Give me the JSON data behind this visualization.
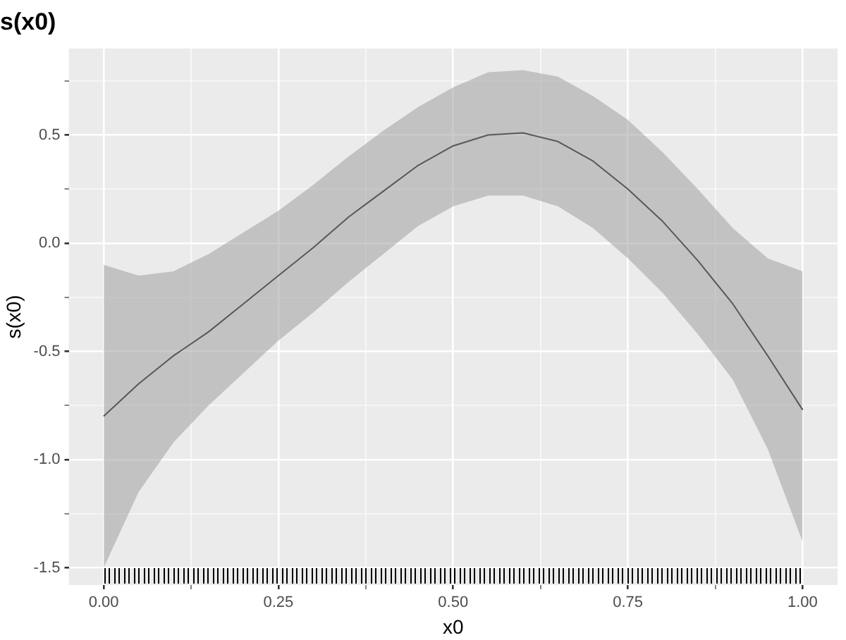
{
  "chart_data": {
    "type": "line",
    "title": "s(x0)",
    "xlabel": "x0",
    "ylabel": "s(x0)",
    "x": [
      0,
      0.05,
      0.1,
      0.15,
      0.2,
      0.25,
      0.3,
      0.35,
      0.4,
      0.45,
      0.5,
      0.55,
      0.6,
      0.65,
      0.7,
      0.75,
      0.8,
      0.85,
      0.9,
      0.95,
      1.0
    ],
    "series": [
      {
        "color": "#000000",
        "values": [
          -0.8,
          -0.65,
          -0.52,
          -0.41,
          -0.28,
          -0.15,
          -0.02,
          0.12,
          0.24,
          0.36,
          0.45,
          0.5,
          0.51,
          0.47,
          0.38,
          0.25,
          0.1,
          -0.08,
          -0.28,
          -0.52,
          -0.77
        ],
        "lower": [
          -1.5,
          -1.15,
          -0.92,
          -0.75,
          -0.6,
          -0.45,
          -0.32,
          -0.18,
          -0.05,
          0.08,
          0.17,
          0.22,
          0.22,
          0.17,
          0.07,
          -0.07,
          -0.23,
          -0.42,
          -0.63,
          -0.95,
          -1.38
        ],
        "upper": [
          -0.1,
          -0.15,
          -0.13,
          -0.05,
          0.05,
          0.15,
          0.27,
          0.4,
          0.52,
          0.63,
          0.72,
          0.79,
          0.8,
          0.77,
          0.68,
          0.57,
          0.42,
          0.25,
          0.07,
          -0.07,
          -0.13
        ]
      }
    ],
    "xlim": [
      -0.05,
      1.05
    ],
    "xticks": [
      {
        "value": 0,
        "label": "0.00"
      },
      {
        "value": 0.125,
        "label": null
      },
      {
        "value": 0.25,
        "label": "0.25"
      },
      {
        "value": 0.375,
        "label": null
      },
      {
        "value": 0.5,
        "label": "0.50"
      },
      {
        "value": 0.625,
        "label": null
      },
      {
        "value": 0.75,
        "label": "0.75"
      },
      {
        "value": 0.875,
        "label": null
      },
      {
        "value": 1,
        "label": "1.00"
      }
    ],
    "ylim": [
      -1.58,
      0.9
    ],
    "yticks": [
      {
        "value": -1.5,
        "label": "-1.5"
      },
      {
        "value": -1.25,
        "label": null
      },
      {
        "value": -1,
        "label": "-1.0"
      },
      {
        "value": -0.75,
        "label": null
      },
      {
        "value": -0.5,
        "label": "-0.5"
      },
      {
        "value": -0.25,
        "label": null
      },
      {
        "value": 0,
        "label": "0.0"
      },
      {
        "value": 0.25,
        "label": null
      },
      {
        "value": 0.5,
        "label": "0.5"
      },
      {
        "value": 0.75,
        "label": null
      }
    ],
    "grid": true,
    "legend": false,
    "marker": "none",
    "line_style": "solid"
  }
}
